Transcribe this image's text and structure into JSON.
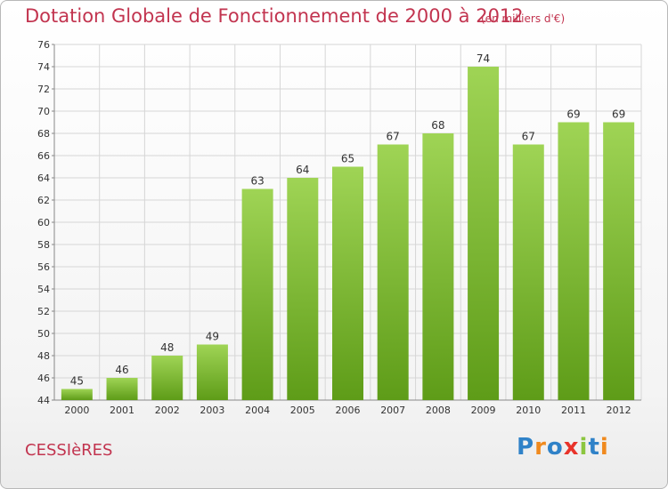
{
  "header": {
    "title": "Dotation Globale de Fonctionnement de 2000 à 2012",
    "unit": "(en milliers d'€)"
  },
  "footer": {
    "commune": "CESSIèRES",
    "logo": "Proxiti"
  },
  "colors": {
    "title": "#c2344f",
    "bar_top": "#9fd455",
    "bar_bottom": "#5e9c18",
    "grid": "#d6d6d6"
  },
  "chart_data": {
    "type": "bar",
    "title": "Dotation Globale de Fonctionnement de 2000 à 2012",
    "subtitle": "(en milliers d'€)",
    "categories": [
      "2000",
      "2001",
      "2002",
      "2003",
      "2004",
      "2005",
      "2006",
      "2007",
      "2008",
      "2009",
      "2010",
      "2011",
      "2012"
    ],
    "values": [
      45,
      46,
      48,
      49,
      63,
      64,
      65,
      67,
      68,
      74,
      67,
      69,
      69
    ],
    "ylim": [
      44,
      76
    ],
    "yticks": [
      44,
      46,
      48,
      50,
      52,
      54,
      56,
      58,
      60,
      62,
      64,
      66,
      68,
      70,
      72,
      74,
      76
    ],
    "grid": true,
    "data_labels": true
  }
}
